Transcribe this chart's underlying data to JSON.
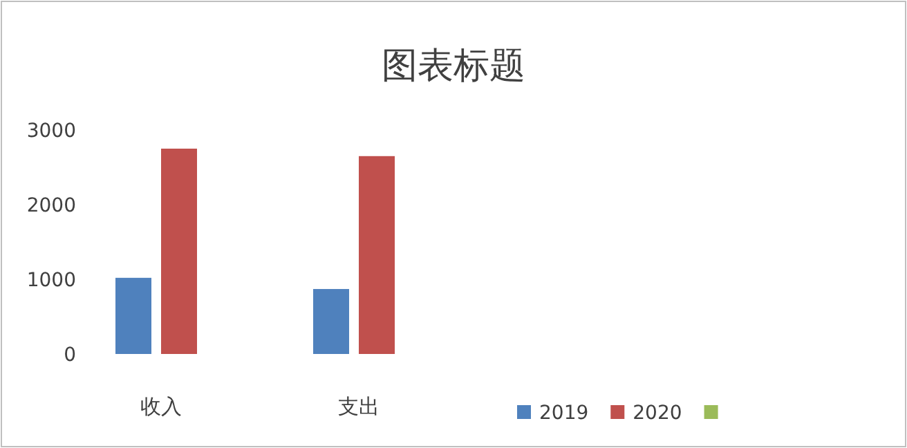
{
  "chart_data": {
    "type": "bar",
    "title": "图表标题",
    "categories": [
      "收入",
      "支出",
      null,
      null
    ],
    "series": [
      {
        "name": "2019",
        "color": "#4f81bd",
        "values": [
          1020,
          870,
          null,
          null
        ]
      },
      {
        "name": "2020",
        "color": "#c0504d",
        "values": [
          2750,
          2650,
          null,
          null
        ]
      },
      {
        "color": "#9bbb59",
        "values": [
          null,
          null,
          null,
          null
        ]
      }
    ],
    "ylim": [
      0,
      3000
    ],
    "yticks": [
      0,
      1000,
      2000,
      3000
    ],
    "grid": false,
    "legend": "bottom right"
  }
}
